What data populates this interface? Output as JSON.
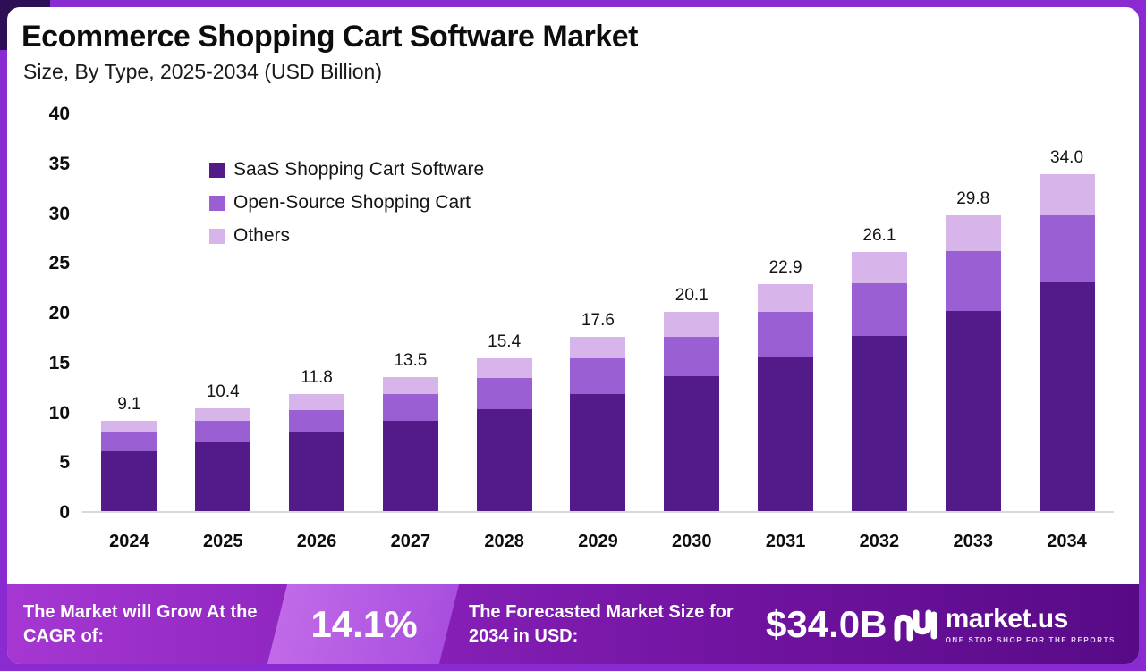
{
  "title": "Ecommerce Shopping Cart Software Market",
  "subtitle": "Size, By Type, 2025-2034 (USD Billion)",
  "chart_data": {
    "type": "bar",
    "stacked": true,
    "title": "Ecommerce Shopping Cart Software Market Size, By Type, 2025-2034 (USD Billion)",
    "categories": [
      "2024",
      "2025",
      "2026",
      "2027",
      "2028",
      "2029",
      "2030",
      "2031",
      "2032",
      "2033",
      "2034"
    ],
    "series": [
      {
        "name": "SaaS Shopping Cart Software",
        "color": "#531b8a",
        "values": [
          6.0,
          6.9,
          7.9,
          9.1,
          10.3,
          11.8,
          13.6,
          15.5,
          17.7,
          20.2,
          23.1
        ]
      },
      {
        "name": "Open-Source Shopping Cart",
        "color": "#9a5fd3",
        "values": [
          2.0,
          2.2,
          2.3,
          2.7,
          3.1,
          3.6,
          4.0,
          4.6,
          5.3,
          6.0,
          6.7
        ]
      },
      {
        "name": "Others",
        "color": "#d7b4e9",
        "values": [
          1.1,
          1.3,
          1.6,
          1.7,
          2.0,
          2.2,
          2.5,
          2.8,
          3.1,
          3.6,
          4.2
        ]
      }
    ],
    "totals": [
      9.1,
      10.4,
      11.8,
      13.5,
      15.4,
      17.6,
      20.1,
      22.9,
      26.1,
      29.8,
      34.0
    ],
    "ylim": [
      0,
      40
    ],
    "yticks": [
      0,
      5,
      10,
      15,
      20,
      25,
      30,
      35,
      40
    ],
    "grid": false,
    "legend_position": "top-left"
  },
  "footer": {
    "cagr_label": "The Market will Grow At the CAGR of:",
    "cagr_value": "14.1%",
    "forecast_label": "The Forecasted Market Size for 2034 in USD:",
    "forecast_value": "$34.0B",
    "brand": "market.us",
    "brand_tagline": "ONE STOP SHOP FOR THE REPORTS"
  },
  "colors": {
    "frame": "#8a2bd1",
    "corner_accent": "#2e0f55",
    "footer_gradient_start": "#a637d2",
    "footer_gradient_end": "#570a86",
    "cagr_band": "#b75fe5",
    "baseline": "#d9d9d9"
  }
}
